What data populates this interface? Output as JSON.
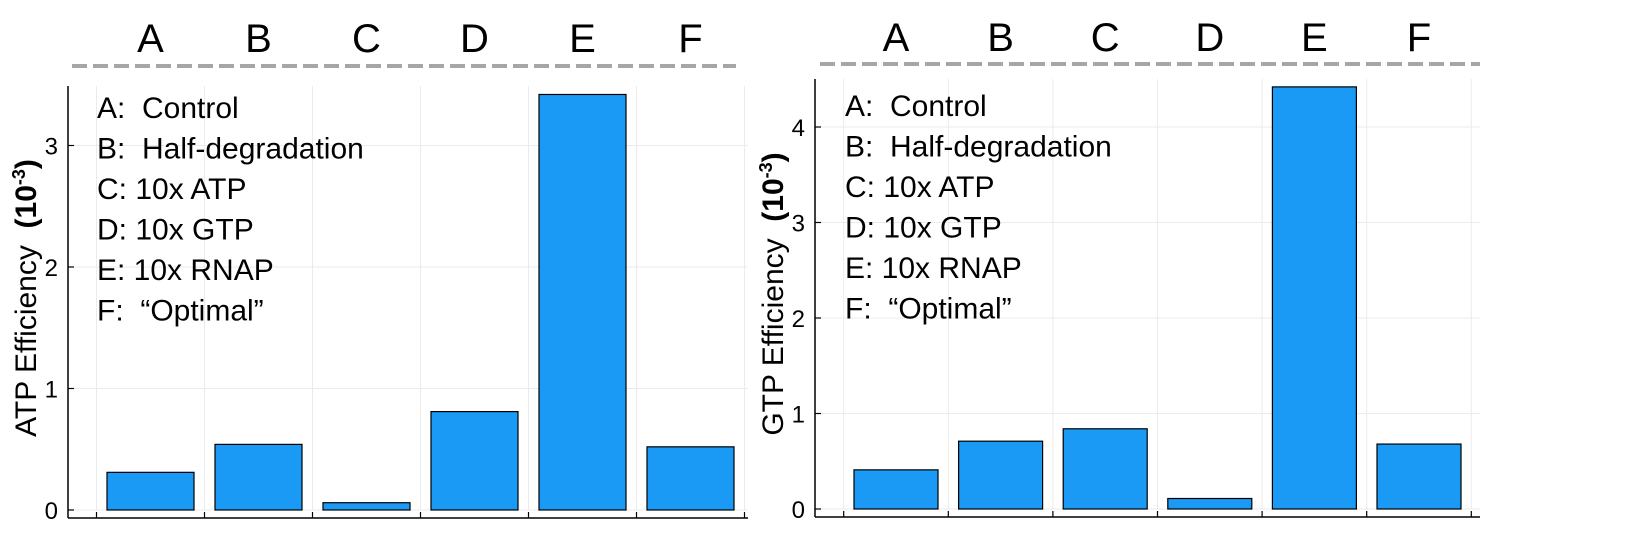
{
  "chart_data": [
    {
      "type": "bar",
      "categories": [
        "A",
        "B",
        "C",
        "D",
        "E",
        "F"
      ],
      "values": [
        0.31,
        0.54,
        0.06,
        0.81,
        3.42,
        0.52
      ],
      "ylabel": "ATP Efficiency",
      "ylabel_unit_base": "(10",
      "ylabel_unit_exp": "-3",
      "ylabel_unit_close": ")",
      "ylim": [
        0,
        3.5
      ],
      "yticks": [
        0,
        1,
        2,
        3
      ],
      "legend": [
        "A:  Control",
        "B:  Half-degradation",
        "C: 10x ATP",
        "D: 10x GTP",
        "E: 10x RNAP",
        "F:  “Optimal”"
      ],
      "grid": true,
      "bar_color": "#1a99f5"
    },
    {
      "type": "bar",
      "categories": [
        "A",
        "B",
        "C",
        "D",
        "E",
        "F"
      ],
      "values": [
        0.41,
        0.71,
        0.84,
        0.11,
        4.42,
        0.68
      ],
      "ylabel": "GTP Efficiency",
      "ylabel_unit_base": "(10",
      "ylabel_unit_exp": "-3",
      "ylabel_unit_close": ")",
      "ylim": [
        0,
        4.5
      ],
      "yticks": [
        0,
        1,
        2,
        3,
        4
      ],
      "legend": [
        "A:  Control",
        "B:  Half-degradation",
        "C: 10x ATP",
        "D: 10x GTP",
        "E: 10x RNAP",
        "F:  “Optimal”"
      ],
      "grid": true,
      "bar_color": "#1a99f5"
    }
  ]
}
